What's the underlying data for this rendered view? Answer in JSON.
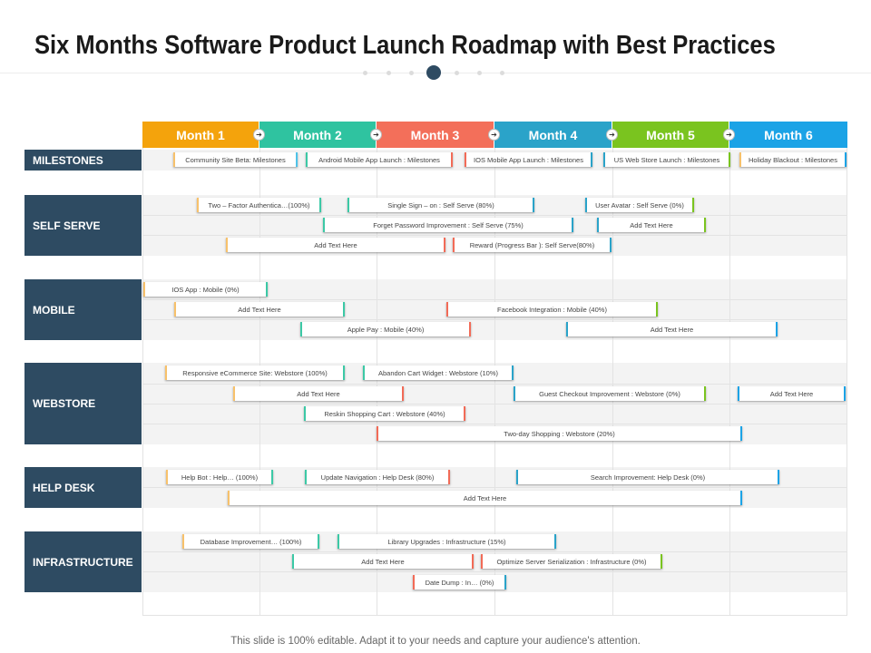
{
  "title": "Six Months Software Product Launch Roadmap with Best Practices",
  "footer": "This slide is 100% editable. Adapt it to your needs and capture your audience's attention.",
  "colors": {
    "category_bg": "#2e4b62",
    "dot_active": "#2e4b62",
    "dot_inactive": "#dcdcdc"
  },
  "months": [
    {
      "label": "Month 1",
      "color": "#f4a30c"
    },
    {
      "label": "Month 2",
      "color": "#2fc3a0"
    },
    {
      "label": "Month 3",
      "color": "#f36f5a"
    },
    {
      "label": "Month 4",
      "color": "#2aa3c9"
    },
    {
      "label": "Month 5",
      "color": "#7ac41f"
    },
    {
      "label": "Month 6",
      "color": "#1ba3e6"
    }
  ],
  "arrow_icon": "arrow-right-icon",
  "categories": [
    {
      "label": "MILESTONES"
    },
    {
      "label": "SELF SERVE"
    },
    {
      "label": "MOBILE"
    },
    {
      "label": "WEBSTORE"
    },
    {
      "label": "HELP DESK"
    },
    {
      "label": "INFRASTRUCTURE"
    }
  ],
  "tasks": [
    {
      "label": "Community Site Beta: Milestones"
    },
    {
      "label": "Android Mobile App Launch : Milestones"
    },
    {
      "label": "IOS Mobile App Launch : Milestones"
    },
    {
      "label": "US Web Store Launch : Milestones"
    },
    {
      "label": "Holiday Blackout : Milestones"
    },
    {
      "label": "Two – Factor Authentica…(100%)"
    },
    {
      "label": "Single Sign – on : Self Serve (80%)"
    },
    {
      "label": "User Avatar : Self Serve (0%)"
    },
    {
      "label": "Forget Password Improvement : Self Serve (75%)"
    },
    {
      "label": "Add Text Here"
    },
    {
      "label": "Add Text Here"
    },
    {
      "label": "Reward (Progress Bar ): Self Serve(80%)"
    },
    {
      "label": "IOS App : Mobile (0%)"
    },
    {
      "label": "Add Text Here"
    },
    {
      "label": "Facebook Integration : Mobile (40%)"
    },
    {
      "label": "Apple Pay : Mobile (40%)"
    },
    {
      "label": "Add Text Here"
    },
    {
      "label": "Responsive eCommerce Site: Webstore (100%)"
    },
    {
      "label": "Abandon Cart Widget : Webstore (10%)"
    },
    {
      "label": "Add Text Here"
    },
    {
      "label": "Guest Checkout Improvement : Webstore (0%)"
    },
    {
      "label": "Add Text Here"
    },
    {
      "label": "Reskin Shopping Cart : Webstore (40%)"
    },
    {
      "label": "Two-day Shopping : Webstore (20%)"
    },
    {
      "label": "Help Bot : Help… (100%)"
    },
    {
      "label": "Update Navigation : Help Desk (80%)"
    },
    {
      "label": "Search Improvement: Help Desk (0%)"
    },
    {
      "label": "Add Text Here"
    },
    {
      "label": "Database Improvement… (100%)"
    },
    {
      "label": "Library Upgrades : Infrastructure (15%)"
    },
    {
      "label": "Add Text Here"
    },
    {
      "label": "Optimize Server Serialization : Infrastructure (0%)"
    },
    {
      "label": "Date Dump : In… (0%)"
    }
  ]
}
